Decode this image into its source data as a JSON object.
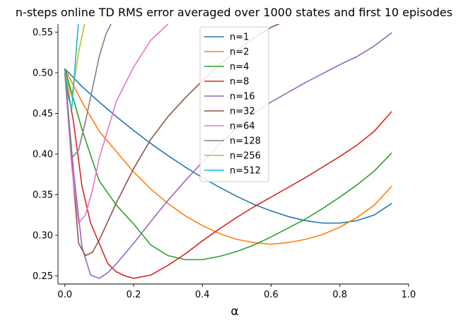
{
  "chart_data": {
    "type": "line",
    "title": "n-steps online TD RMS error averaged over 1000 states and first 10 episodes",
    "xlabel": "α",
    "ylabel": "",
    "xlim": [
      -0.02,
      1.0
    ],
    "ylim": [
      0.24,
      0.56
    ],
    "xticks": [
      0.0,
      0.2,
      0.4,
      0.6,
      0.8,
      1.0
    ],
    "xtick_labels": [
      "0.0",
      "0.2",
      "0.4",
      "0.6",
      "0.8",
      "1.0"
    ],
    "yticks": [
      0.25,
      0.3,
      0.35,
      0.4,
      0.45,
      0.5,
      0.55
    ],
    "ytick_labels": [
      "0.25",
      "0.30",
      "0.35",
      "0.40",
      "0.45",
      "0.50",
      "0.55"
    ],
    "grid": false,
    "legend_position": "top-center",
    "series": [
      {
        "name": "n=1",
        "color": "#1f77b4",
        "x": [
          0,
          0.05,
          0.1,
          0.15,
          0.2,
          0.25,
          0.3,
          0.35,
          0.4,
          0.45,
          0.5,
          0.55,
          0.6,
          0.65,
          0.7,
          0.75,
          0.8,
          0.85,
          0.9,
          0.95
        ],
        "y": [
          0.505,
          0.483,
          0.464,
          0.446,
          0.429,
          0.413,
          0.398,
          0.384,
          0.371,
          0.359,
          0.348,
          0.338,
          0.33,
          0.323,
          0.318,
          0.315,
          0.315,
          0.318,
          0.325,
          0.339
        ]
      },
      {
        "name": "n=2",
        "color": "#ff7f0e",
        "x": [
          0,
          0.05,
          0.1,
          0.15,
          0.2,
          0.25,
          0.3,
          0.35,
          0.4,
          0.45,
          0.5,
          0.55,
          0.6,
          0.65,
          0.7,
          0.75,
          0.8,
          0.85,
          0.9,
          0.95
        ],
        "y": [
          0.505,
          0.464,
          0.428,
          0.403,
          0.378,
          0.357,
          0.339,
          0.324,
          0.312,
          0.302,
          0.295,
          0.291,
          0.289,
          0.291,
          0.295,
          0.301,
          0.31,
          0.322,
          0.337,
          0.36
        ]
      },
      {
        "name": "n=4",
        "color": "#2ca02c",
        "x": [
          0,
          0.05,
          0.1,
          0.15,
          0.2,
          0.25,
          0.3,
          0.35,
          0.4,
          0.45,
          0.5,
          0.55,
          0.6,
          0.65,
          0.7,
          0.75,
          0.8,
          0.85,
          0.9,
          0.95
        ],
        "y": [
          0.505,
          0.43,
          0.367,
          0.337,
          0.314,
          0.288,
          0.275,
          0.27,
          0.27,
          0.274,
          0.28,
          0.288,
          0.298,
          0.309,
          0.32,
          0.333,
          0.347,
          0.362,
          0.379,
          0.401
        ]
      },
      {
        "name": "n=8",
        "color": "#d62728",
        "x": [
          0,
          0.025,
          0.05,
          0.075,
          0.1,
          0.125,
          0.15,
          0.175,
          0.2,
          0.25,
          0.3,
          0.35,
          0.4,
          0.45,
          0.5,
          0.55,
          0.6,
          0.65,
          0.7,
          0.75,
          0.8,
          0.85,
          0.9,
          0.95
        ],
        "y": [
          0.5,
          0.44,
          0.36,
          0.315,
          0.29,
          0.265,
          0.255,
          0.25,
          0.247,
          0.251,
          0.263,
          0.277,
          0.293,
          0.308,
          0.322,
          0.335,
          0.347,
          0.359,
          0.371,
          0.384,
          0.397,
          0.411,
          0.428,
          0.452
        ]
      },
      {
        "name": "n=16",
        "color": "#9467bd",
        "x": [
          0,
          0.025,
          0.05,
          0.075,
          0.1,
          0.125,
          0.15,
          0.2,
          0.25,
          0.3,
          0.35,
          0.4,
          0.45,
          0.5,
          0.55,
          0.6,
          0.65,
          0.7,
          0.75,
          0.8,
          0.85,
          0.9,
          0.95
        ],
        "y": [
          0.5,
          0.38,
          0.285,
          0.251,
          0.247,
          0.254,
          0.265,
          0.29,
          0.317,
          0.343,
          0.367,
          0.39,
          0.412,
          0.432,
          0.45,
          0.464,
          0.476,
          0.488,
          0.499,
          0.51,
          0.52,
          0.533,
          0.549
        ]
      },
      {
        "name": "n=32",
        "color": "#8c564b",
        "x": [
          0,
          0.02,
          0.04,
          0.06,
          0.08,
          0.1,
          0.15,
          0.2,
          0.25,
          0.3,
          0.35,
          0.4,
          0.45,
          0.5,
          0.55,
          0.6,
          0.65
        ],
        "y": [
          0.5,
          0.39,
          0.29,
          0.275,
          0.279,
          0.294,
          0.34,
          0.382,
          0.418,
          0.446,
          0.469,
          0.49,
          0.51,
          0.527,
          0.543,
          0.556,
          0.565
        ]
      },
      {
        "name": "n=64",
        "color": "#e377c2",
        "x": [
          0,
          0.02,
          0.04,
          0.06,
          0.08,
          0.1,
          0.15,
          0.2,
          0.25,
          0.3
        ],
        "y": [
          0.5,
          0.385,
          0.315,
          0.325,
          0.355,
          0.395,
          0.465,
          0.507,
          0.54,
          0.56
        ]
      },
      {
        "name": "n=128",
        "color": "#7f7f7f",
        "x": [
          0,
          0.02,
          0.04,
          0.06,
          0.08,
          0.1,
          0.12,
          0.14
        ],
        "y": [
          0.505,
          0.395,
          0.405,
          0.44,
          0.48,
          0.52,
          0.548,
          0.565
        ]
      },
      {
        "name": "n=256",
        "color": "#bcbd22",
        "x": [
          0,
          0.02,
          0.04,
          0.06
        ],
        "y": [
          0.5,
          0.47,
          0.525,
          0.565
        ]
      },
      {
        "name": "n=512",
        "color": "#17becf",
        "x": [
          0,
          0.01,
          0.02,
          0.03,
          0.04
        ],
        "y": [
          0.503,
          0.47,
          0.455,
          0.51,
          0.565
        ]
      }
    ]
  }
}
